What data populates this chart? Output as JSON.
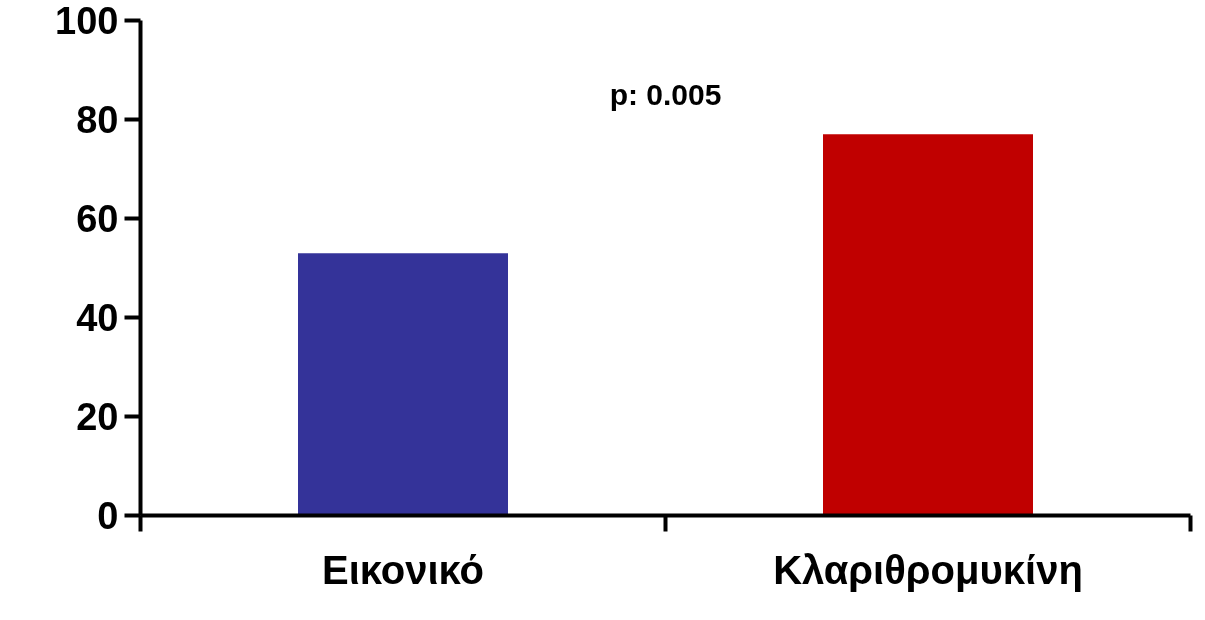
{
  "chart_data": {
    "type": "bar",
    "categories": [
      "Εικονικό",
      "Κλαριθρομυκίνη"
    ],
    "colors": [
      "#343399",
      "#c00000"
    ],
    "values": [
      53,
      77
    ],
    "ylim": [
      0,
      100
    ],
    "yticks": [
      0,
      20,
      40,
      60,
      80,
      100
    ],
    "grid": false,
    "annotations": [
      "p: 0.005"
    ]
  }
}
